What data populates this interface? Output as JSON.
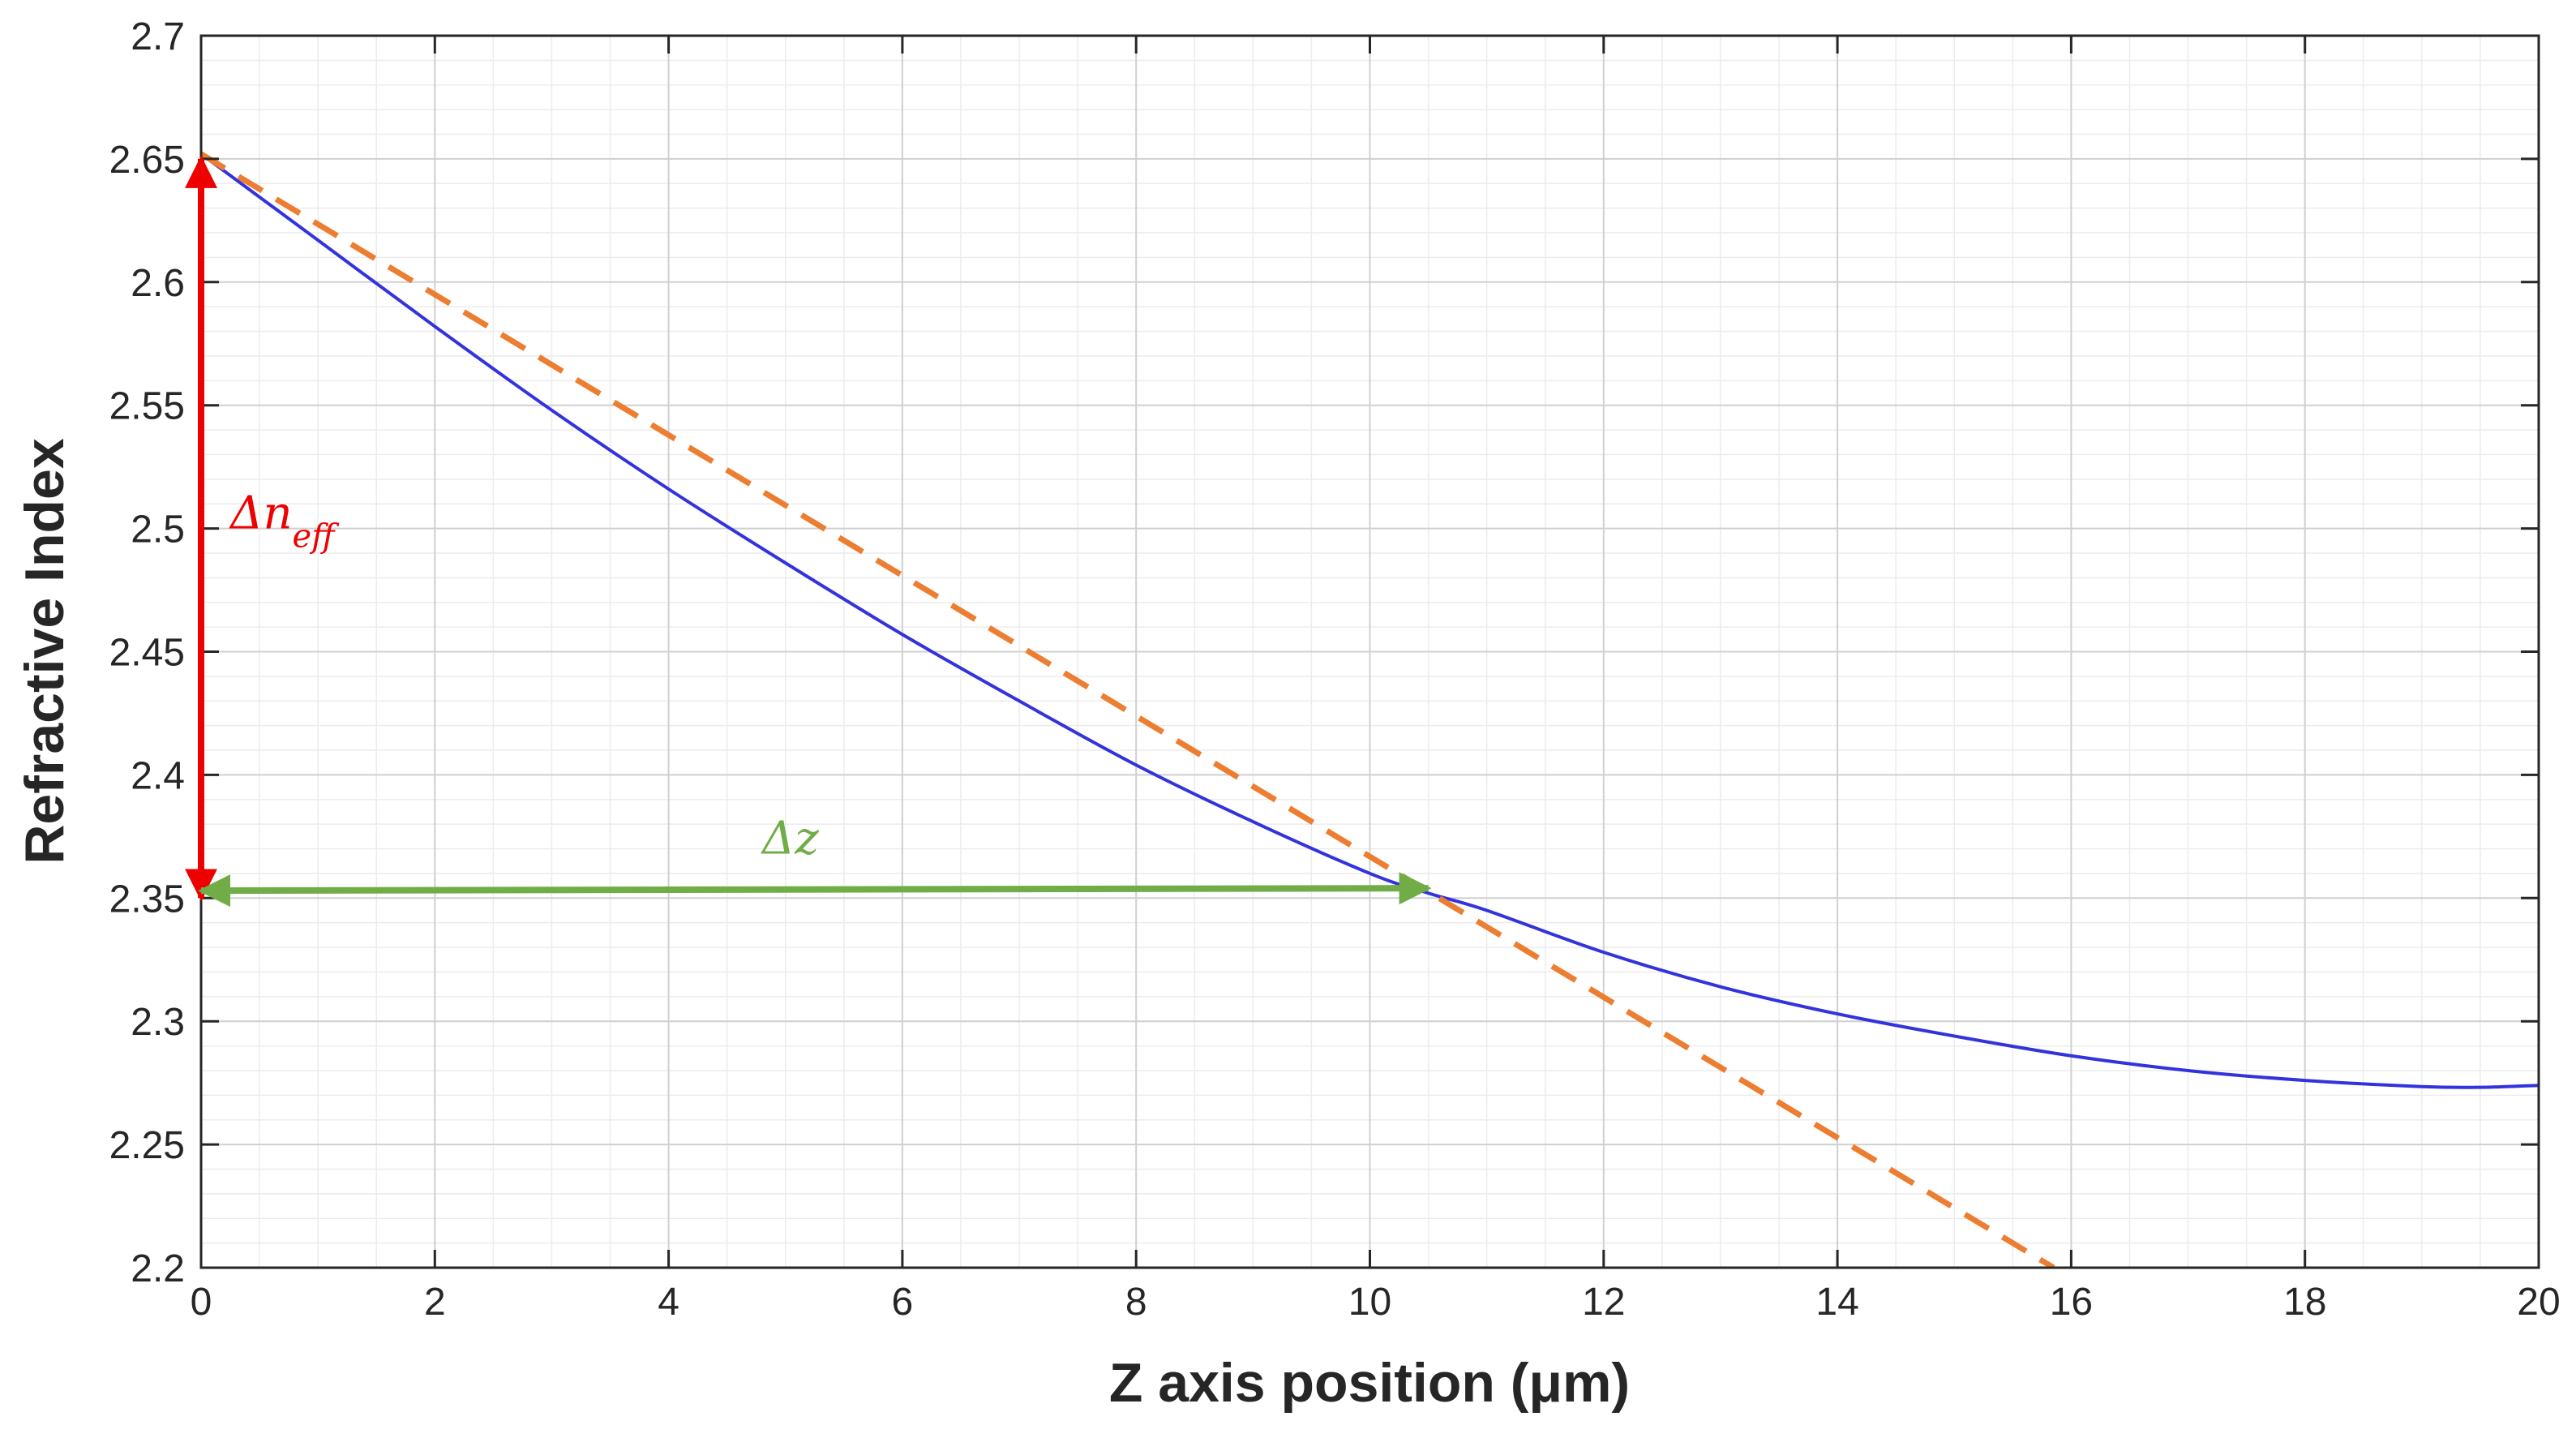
{
  "chart_data": {
    "type": "line",
    "xlabel": "Z axis position (μm)",
    "ylabel": "Refractive Index",
    "xlim": [
      0,
      20
    ],
    "ylim": [
      2.2,
      2.7
    ],
    "x_ticks": [
      0,
      2,
      4,
      6,
      8,
      10,
      12,
      14,
      16,
      18,
      20
    ],
    "y_ticks": [
      2.2,
      2.25,
      2.3,
      2.35,
      2.4,
      2.45,
      2.5,
      2.55,
      2.6,
      2.65,
      2.7
    ],
    "x_tick_labels": [
      "0",
      "2",
      "4",
      "6",
      "8",
      "10",
      "12",
      "14",
      "16",
      "18",
      "20"
    ],
    "y_tick_labels": [
      "2.2",
      "2.25",
      "2.3",
      "2.35",
      "2.4",
      "2.45",
      "2.5",
      "2.55",
      "2.6",
      "2.65",
      "2.7"
    ],
    "grid": true,
    "minor_grid": true,
    "series": [
      {
        "style": "solid",
        "color": "#3333dd",
        "x": [
          0,
          1,
          2,
          3,
          4,
          5,
          6,
          7,
          8,
          9,
          10,
          10.5,
          11,
          12,
          13,
          14,
          15,
          16,
          17,
          18,
          19,
          19.5,
          20
        ],
        "y": [
          2.652,
          2.617,
          2.582,
          2.548,
          2.516,
          2.486,
          2.457,
          2.43,
          2.404,
          2.381,
          2.36,
          2.352,
          2.345,
          2.328,
          2.314,
          2.303,
          2.294,
          2.286,
          2.28,
          2.276,
          2.2735,
          2.2732,
          2.274
        ]
      },
      {
        "style": "dashed",
        "color": "#ed7d31",
        "x": [
          0,
          15.85
        ],
        "y": [
          2.652,
          2.2
        ]
      }
    ],
    "annotations": [
      {
        "text": "Δn",
        "subscript": "eff",
        "color": "#ee0000",
        "arrow": {
          "x": [
            0,
            0
          ],
          "y": [
            2.65,
            2.35
          ]
        },
        "label_at": {
          "x": 0.25,
          "y": 2.5
        }
      },
      {
        "text": "Δz",
        "color": "#70ad47",
        "arrow": {
          "x": [
            0,
            10.5
          ],
          "y": [
            2.353,
            2.354
          ]
        },
        "label_at": {
          "x": 4.8,
          "y": 2.368
        }
      }
    ]
  }
}
